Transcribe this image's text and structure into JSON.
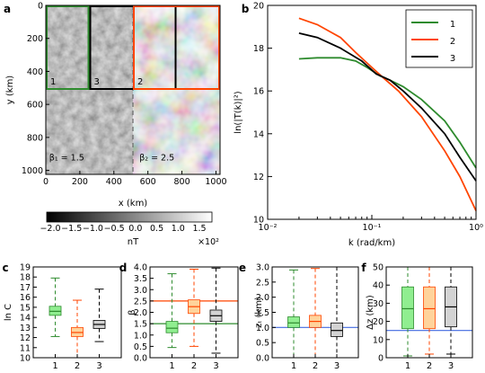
{
  "panel_labels": [
    "a",
    "b",
    "c",
    "d",
    "e",
    "f"
  ],
  "chart_data": [
    {
      "panel": "a",
      "type": "heatmap",
      "xlabel": "x (km)",
      "ylabel": "y (km)",
      "xlim": [
        0,
        1024
      ],
      "ylim": [
        1024,
        0
      ],
      "xticks": [
        0,
        200,
        400,
        600,
        800,
        1000
      ],
      "yticks": [
        0,
        200,
        400,
        600,
        800,
        1000
      ],
      "divider_x": 512,
      "boxes": [
        {
          "name": "1",
          "x0": 0,
          "x1": 256,
          "y0": 0,
          "y1": 512,
          "color": "#2e8b2e"
        },
        {
          "name": "3",
          "x0": 256,
          "x1": 768,
          "y0": 0,
          "y1": 512,
          "color": "#000000"
        },
        {
          "name": "2",
          "x0": 512,
          "x1": 1024,
          "y0": 0,
          "y1": 512,
          "color": "#ff4500"
        }
      ],
      "annotations": [
        {
          "text": "β₁ = 1.5",
          "color": "#2e8b2e"
        },
        {
          "text": "β₂ = 2.5",
          "color": "#ff4500"
        }
      ],
      "colorbar": {
        "ticks": [
          "−2.0",
          "−1.5",
          "−1.0",
          "−0.5",
          "0.0",
          "0.5",
          "1.0",
          "1.5"
        ],
        "label": "nT",
        "multiplier": "×10²"
      }
    },
    {
      "panel": "b",
      "type": "line",
      "xlabel": "k (rad/km)",
      "ylabel": "ln(|T(k)|²)",
      "xscale": "log",
      "xlim": [
        0.01,
        1.0
      ],
      "ylim": [
        10,
        20
      ],
      "xticks": [
        "10⁻²",
        "10⁻¹",
        "10⁰"
      ],
      "yticks": [
        10,
        12,
        14,
        16,
        18,
        20
      ],
      "legend": "top-right",
      "series": [
        {
          "name": "1",
          "color": "#2e8b2e",
          "points": [
            [
              0.02,
              17.5
            ],
            [
              0.03,
              17.55
            ],
            [
              0.05,
              17.55
            ],
            [
              0.07,
              17.4
            ],
            [
              0.09,
              17.1
            ],
            [
              0.12,
              16.7
            ],
            [
              0.15,
              16.5
            ],
            [
              0.2,
              16.2
            ],
            [
              0.3,
              15.6
            ],
            [
              0.5,
              14.6
            ],
            [
              0.7,
              13.6
            ],
            [
              1.0,
              12.4
            ]
          ]
        },
        {
          "name": "2",
          "color": "#ff4500",
          "points": [
            [
              0.02,
              19.4
            ],
            [
              0.03,
              19.1
            ],
            [
              0.05,
              18.5
            ],
            [
              0.07,
              17.8
            ],
            [
              0.1,
              17.1
            ],
            [
              0.13,
              16.6
            ],
            [
              0.18,
              16.0
            ],
            [
              0.3,
              14.8
            ],
            [
              0.5,
              13.2
            ],
            [
              0.7,
              12.0
            ],
            [
              1.0,
              10.4
            ]
          ]
        },
        {
          "name": "3",
          "color": "#000000",
          "points": [
            [
              0.02,
              18.7
            ],
            [
              0.03,
              18.5
            ],
            [
              0.05,
              18.0
            ],
            [
              0.08,
              17.4
            ],
            [
              0.11,
              16.8
            ],
            [
              0.15,
              16.5
            ],
            [
              0.2,
              16.0
            ],
            [
              0.3,
              15.2
            ],
            [
              0.5,
              14.0
            ],
            [
              0.7,
              12.9
            ],
            [
              1.0,
              11.8
            ]
          ]
        }
      ]
    },
    {
      "panel": "c",
      "type": "box",
      "ylabel": "ln C",
      "ylim": [
        10,
        19
      ],
      "yticks": [
        10,
        11,
        12,
        13,
        14,
        15,
        16,
        17,
        18,
        19
      ],
      "categories": [
        "1",
        "2",
        "3"
      ],
      "boxes": [
        {
          "min": 12.1,
          "q1": 14.2,
          "median": 14.6,
          "q3": 15.1,
          "max": 17.9,
          "color": "#2e8b2e",
          "fill": "#90ee90"
        },
        {
          "min": 10.0,
          "q1": 12.1,
          "median": 12.5,
          "q3": 13.0,
          "max": 15.7,
          "color": "#ff4500",
          "fill": "#ffd39b"
        },
        {
          "min": 11.6,
          "q1": 12.9,
          "median": 13.3,
          "q3": 13.7,
          "max": 16.8,
          "color": "#000000",
          "fill": "#d3d3d3"
        }
      ]
    },
    {
      "panel": "d",
      "type": "box",
      "ylabel": "β",
      "ylim": [
        0,
        4
      ],
      "yticks": [
        "0.0",
        "0.5",
        "1.0",
        "1.5",
        "2.0",
        "2.5",
        "3.0",
        "3.5",
        "4.0"
      ],
      "categories": [
        "1",
        "2",
        "3"
      ],
      "reference_lines": [
        {
          "y": 1.5,
          "color": "#2e8b2e"
        },
        {
          "y": 2.5,
          "color": "#ff4500"
        }
      ],
      "boxes": [
        {
          "min": 0.45,
          "q1": 1.1,
          "median": 1.3,
          "q3": 1.6,
          "max": 3.7,
          "color": "#2e8b2e",
          "fill": "#90ee90"
        },
        {
          "min": 0.5,
          "q1": 1.95,
          "median": 2.25,
          "q3": 2.55,
          "max": 3.9,
          "color": "#ff4500",
          "fill": "#ffd39b"
        },
        {
          "min": 0.2,
          "q1": 1.6,
          "median": 1.85,
          "q3": 2.1,
          "max": 3.95,
          "color": "#000000",
          "fill": "#d3d3d3"
        }
      ]
    },
    {
      "panel": "e",
      "type": "box",
      "ylabel": "zₜ (km)",
      "ylim": [
        0,
        3
      ],
      "yticks": [
        "0.0",
        "0.5",
        "1.0",
        "1.5",
        "2.0",
        "2.5",
        "3.0"
      ],
      "categories": [
        "1",
        "2",
        "3"
      ],
      "reference_lines": [
        {
          "y": 1.0,
          "color": "#4169e1"
        }
      ],
      "boxes": [
        {
          "min": 0.0,
          "q1": 1.0,
          "median": 1.15,
          "q3": 1.35,
          "max": 2.9,
          "color": "#2e8b2e",
          "fill": "#90ee90"
        },
        {
          "min": 0.0,
          "q1": 1.0,
          "median": 1.2,
          "q3": 1.4,
          "max": 2.95,
          "color": "#ff4500",
          "fill": "#ffd39b"
        },
        {
          "min": 0.0,
          "q1": 0.7,
          "median": 0.9,
          "q3": 1.15,
          "max": 3.0,
          "color": "#000000",
          "fill": "#d3d3d3"
        }
      ]
    },
    {
      "panel": "f",
      "type": "box",
      "ylabel": "Δz (km)",
      "ylim": [
        0,
        50
      ],
      "yticks": [
        0,
        10,
        20,
        30,
        40,
        50
      ],
      "categories": [
        "1",
        "2",
        "3"
      ],
      "reference_lines": [
        {
          "y": 15,
          "color": "#4169e1"
        }
      ],
      "boxes": [
        {
          "min": 1,
          "q1": 16,
          "median": 27,
          "q3": 39,
          "max": 50,
          "color": "#2e8b2e",
          "fill": "#90ee90"
        },
        {
          "min": 2,
          "q1": 16,
          "median": 27,
          "q3": 39,
          "max": 50,
          "color": "#ff4500",
          "fill": "#ffd39b"
        },
        {
          "min": 2,
          "q1": 17,
          "median": 28,
          "q3": 39,
          "max": 50,
          "color": "#000000",
          "fill": "#d3d3d3"
        }
      ]
    }
  ]
}
